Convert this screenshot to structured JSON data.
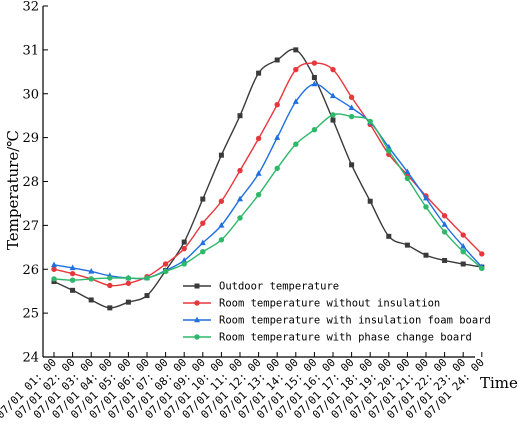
{
  "chart_data": {
    "type": "line",
    "xlabel": "Time",
    "ylabel": "Temperature/℃",
    "ylim": [
      24,
      32
    ],
    "yticks": [
      "24",
      "25",
      "26",
      "27",
      "28",
      "29",
      "30",
      "31",
      "32"
    ],
    "categories": [
      "07/01 01: 00",
      "07/01 02: 00",
      "07/01 03: 00",
      "07/01 04: 00",
      "07/01 05: 00",
      "07/01 06: 00",
      "07/01 07: 00",
      "07/01 08: 00",
      "07/01 09: 00",
      "07/01 10: 00",
      "07/01 11: 00",
      "07/01 12: 00",
      "07/01 13: 00",
      "07/01 14: 00",
      "07/01 15: 00",
      "07/01 16: 00",
      "07/01 17: 00",
      "07/01 18: 00",
      "07/01 19: 00",
      "07/01 20: 00",
      "07/01 21: 00",
      "07/01 22: 00",
      "07/01 23: 00",
      "07/01 24: 00"
    ],
    "legend_position": "bottom-right",
    "grid": false,
    "series": [
      {
        "name": "Outdoor temperature",
        "color": "#3a3a3a",
        "marker": "square",
        "values": [
          25.72,
          25.52,
          25.3,
          25.12,
          25.25,
          25.4,
          25.97,
          26.62,
          27.6,
          28.6,
          29.5,
          30.47,
          30.77,
          31.0,
          30.37,
          29.4,
          28.38,
          27.55,
          26.75,
          26.55,
          26.32,
          26.2,
          26.12,
          26.05
        ]
      },
      {
        "name": "Room temperature without insulation",
        "color": "#e8373c",
        "marker": "circle",
        "values": [
          26.0,
          25.9,
          25.78,
          25.63,
          25.68,
          25.83,
          26.12,
          26.47,
          27.05,
          27.55,
          28.25,
          28.98,
          29.75,
          30.55,
          30.7,
          30.55,
          29.92,
          29.3,
          28.62,
          28.15,
          27.67,
          27.22,
          26.78,
          26.35
        ]
      },
      {
        "name": "Room temperature with insulation foam board",
        "color": "#1f6fe0",
        "marker": "triangle",
        "values": [
          26.1,
          26.03,
          25.95,
          25.85,
          25.8,
          25.8,
          25.97,
          26.2,
          26.6,
          27.0,
          27.6,
          28.18,
          29.0,
          29.82,
          30.22,
          29.95,
          29.68,
          29.35,
          28.78,
          28.22,
          27.62,
          27.02,
          26.52,
          26.05
        ]
      },
      {
        "name": "Room temperature with phase change board",
        "color": "#2eb86a",
        "marker": "circle",
        "values": [
          25.78,
          25.75,
          25.78,
          25.8,
          25.8,
          25.8,
          25.95,
          26.12,
          26.4,
          26.67,
          27.17,
          27.7,
          28.3,
          28.85,
          29.18,
          29.52,
          29.48,
          29.37,
          28.7,
          28.07,
          27.42,
          26.85,
          26.4,
          26.02
        ]
      }
    ]
  }
}
